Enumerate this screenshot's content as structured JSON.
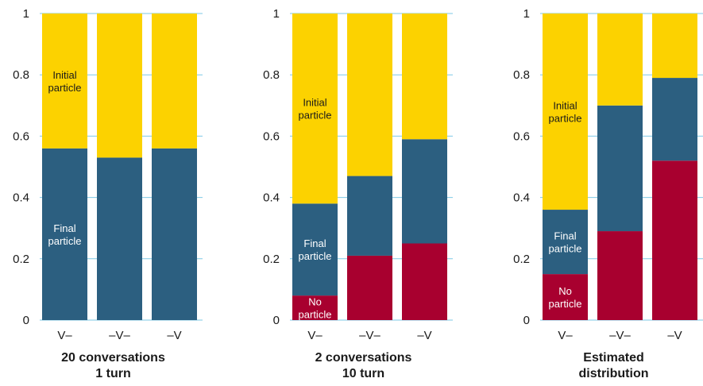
{
  "chart_data": [
    {
      "type": "bar",
      "stacked": true,
      "title": [
        "20 conversations",
        "1 turn"
      ],
      "categories": [
        "V–",
        "–V–",
        "–V"
      ],
      "series": [
        {
          "name": "No particle",
          "color": "#a8002f",
          "values": [
            0,
            0,
            0
          ]
        },
        {
          "name": "Final particle",
          "color": "#2c5f80",
          "values": [
            0.56,
            0.53,
            0.56
          ]
        },
        {
          "name": "Initial particle",
          "color": "#fcd200",
          "values": [
            0.44,
            0.47,
            0.44
          ]
        }
      ],
      "segment_labels": [
        {
          "category": 0,
          "series": 1,
          "lines": [
            "Final",
            "particle"
          ],
          "color": "#ffffff"
        },
        {
          "category": 0,
          "series": 2,
          "lines": [
            "Initial",
            "particle"
          ],
          "color": "#1a1a1a"
        }
      ],
      "ylim": [
        0,
        1
      ],
      "yticks": [
        "0",
        "0.2",
        "0.4",
        "0.6",
        "0.8",
        "1"
      ],
      "grid": true
    },
    {
      "type": "bar",
      "stacked": true,
      "title": [
        "2 conversations",
        "10 turn"
      ],
      "categories": [
        "V–",
        "–V–",
        "–V"
      ],
      "series": [
        {
          "name": "No particle",
          "color": "#a8002f",
          "values": [
            0.08,
            0.21,
            0.25
          ]
        },
        {
          "name": "Final particle",
          "color": "#2c5f80",
          "values": [
            0.3,
            0.26,
            0.34
          ]
        },
        {
          "name": "Initial particle",
          "color": "#fcd200",
          "values": [
            0.62,
            0.53,
            0.41
          ]
        }
      ],
      "segment_labels": [
        {
          "category": 0,
          "series": 0,
          "lines": [
            "No",
            "particle"
          ],
          "color": "#ffffff"
        },
        {
          "category": 0,
          "series": 1,
          "lines": [
            "Final",
            "particle"
          ],
          "color": "#ffffff"
        },
        {
          "category": 0,
          "series": 2,
          "lines": [
            "Initial",
            "particle"
          ],
          "color": "#1a1a1a"
        }
      ],
      "ylim": [
        0,
        1
      ],
      "yticks": [
        "0",
        "0.2",
        "0.4",
        "0.6",
        "0.8",
        "1"
      ],
      "grid": true
    },
    {
      "type": "bar",
      "stacked": true,
      "title": [
        "Estimated",
        "distribution"
      ],
      "categories": [
        "V–",
        "–V–",
        "–V"
      ],
      "series": [
        {
          "name": "No particle",
          "color": "#a8002f",
          "values": [
            0.15,
            0.29,
            0.52
          ]
        },
        {
          "name": "Final particle",
          "color": "#2c5f80",
          "values": [
            0.21,
            0.41,
            0.27
          ]
        },
        {
          "name": "Initial particle",
          "color": "#fcd200",
          "values": [
            0.64,
            0.3,
            0.21
          ]
        }
      ],
      "segment_labels": [
        {
          "category": 0,
          "series": 0,
          "lines": [
            "No",
            "particle"
          ],
          "color": "#ffffff"
        },
        {
          "category": 0,
          "series": 1,
          "lines": [
            "Final",
            "particle"
          ],
          "color": "#ffffff"
        },
        {
          "category": 0,
          "series": 2,
          "lines": [
            "Initial",
            "particle"
          ],
          "color": "#1a1a1a"
        }
      ],
      "ylim": [
        0,
        1
      ],
      "yticks": [
        "0",
        "0.2",
        "0.4",
        "0.6",
        "0.8",
        "1"
      ],
      "grid": true
    }
  ]
}
